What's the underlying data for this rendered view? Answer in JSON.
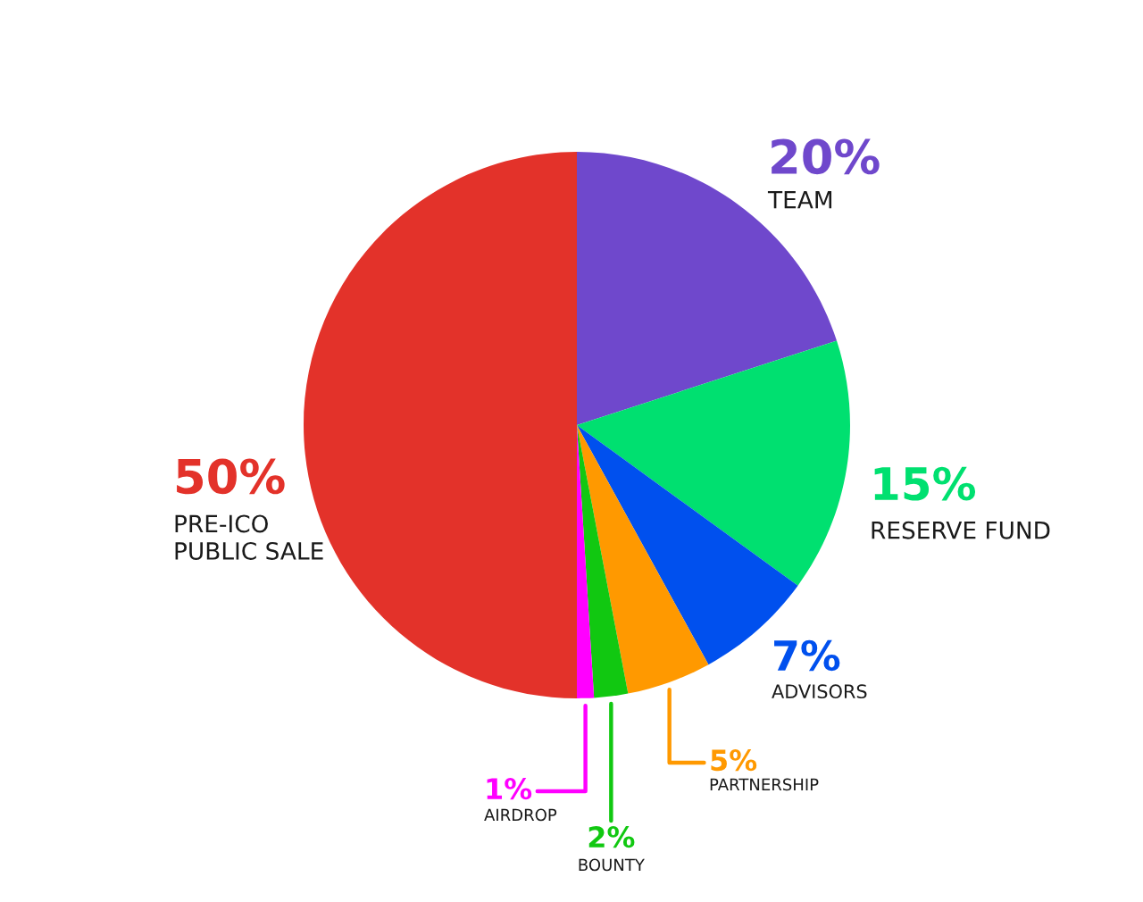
{
  "chart_data": {
    "type": "pie",
    "categories": [
      "TEAM",
      "RESERVE FUND",
      "ADVISORS",
      "PARTNERSHIP",
      "BOUNTY",
      "AIRDROP",
      "PRE-ICO\nPUBLIC SALE"
    ],
    "values": [
      20,
      15,
      7,
      5,
      2,
      1,
      50
    ],
    "value_labels": [
      "20%",
      "15%",
      "7%",
      "5%",
      "2%",
      "1%",
      "50%"
    ],
    "colors": [
      "#6f48cc",
      "#00e070",
      "#0050ee",
      "#ff9900",
      "#11c811",
      "#ff00ff",
      "#e3322a"
    ]
  }
}
